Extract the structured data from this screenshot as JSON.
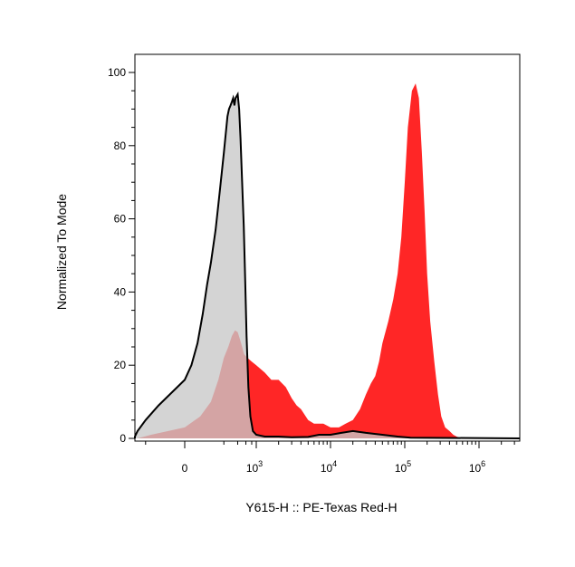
{
  "chart_data": {
    "type": "area",
    "title": "",
    "xlabel": "Y615-H :: PE-Texas Red-H",
    "ylabel": "Normalized To Mode",
    "x_scale": "biexponential",
    "xlim": [
      -1000,
      4000000
    ],
    "ylim": [
      0,
      100
    ],
    "y_ticks": [
      "0",
      "20",
      "40",
      "60",
      "80",
      "100"
    ],
    "x_ticks": [
      {
        "value": 0,
        "base": "0",
        "exp": ""
      },
      {
        "value": 1000,
        "base": "10",
        "exp": "3"
      },
      {
        "value": 10000,
        "base": "10",
        "exp": "4"
      },
      {
        "value": 100000,
        "base": "10",
        "exp": "5"
      },
      {
        "value": 1000000,
        "base": "10",
        "exp": "6"
      }
    ],
    "series": [
      {
        "color": "#ff0000",
        "fill_opacity": 0.85,
        "outline": false,
        "x": [
          -300,
          -150,
          0,
          50,
          100,
          150,
          200,
          250,
          300,
          350,
          400,
          450,
          500,
          550,
          650,
          800,
          1000,
          1300,
          1600,
          2000,
          2500,
          3000,
          3500,
          4000,
          5000,
          6000,
          8000,
          10000,
          13000,
          16000,
          20000,
          25000,
          30000,
          35000,
          40000,
          45000,
          50000,
          60000,
          70000,
          80000,
          90000,
          100000,
          110000,
          125000,
          140000,
          155000,
          170000,
          185000,
          200000,
          220000,
          250000,
          280000,
          310000,
          350000,
          400000,
          450000,
          500000,
          550000,
          600000,
          1000000,
          4000000
        ],
        "y": [
          0,
          1,
          3,
          6,
          10,
          16,
          22,
          25,
          28,
          29.5,
          29,
          27,
          25,
          23,
          22,
          21,
          20,
          18,
          16,
          16,
          14,
          11,
          9,
          8,
          5,
          4,
          4,
          3,
          3,
          4,
          5,
          8,
          12,
          15,
          17,
          21,
          26,
          32,
          38,
          45,
          55,
          70,
          85,
          95,
          97,
          93,
          78,
          62,
          45,
          32,
          21,
          12,
          6,
          3,
          2,
          1,
          0.5,
          0.2,
          0,
          0,
          0
        ]
      },
      {
        "color": "#000000",
        "fill": "#c8c8c8",
        "fill_opacity": 0.78,
        "outline": true,
        "x": [
          -1000,
          -500,
          -300,
          -200,
          -100,
          0,
          20,
          40,
          60,
          80,
          100,
          130,
          160,
          200,
          240,
          260,
          280,
          300,
          320,
          340,
          360,
          400,
          430,
          460,
          500,
          540,
          580,
          620,
          680,
          750,
          850,
          1000,
          1300,
          2000,
          3000,
          5000,
          7000,
          10000,
          14000,
          20000,
          30000,
          50000,
          80000,
          120000,
          4000000
        ],
        "y": [
          0,
          0.5,
          2,
          5,
          9,
          16,
          20,
          26,
          34,
          42,
          48,
          57,
          67,
          78,
          88,
          90,
          91,
          92,
          93,
          91,
          93,
          94,
          90,
          82,
          70,
          58,
          43,
          28,
          14,
          6,
          2,
          1,
          0.5,
          0.5,
          0.3,
          0.4,
          1,
          1,
          1.5,
          2,
          1.5,
          1,
          0.5,
          0.2,
          0
        ]
      }
    ],
    "grid": false,
    "legend": "none"
  }
}
